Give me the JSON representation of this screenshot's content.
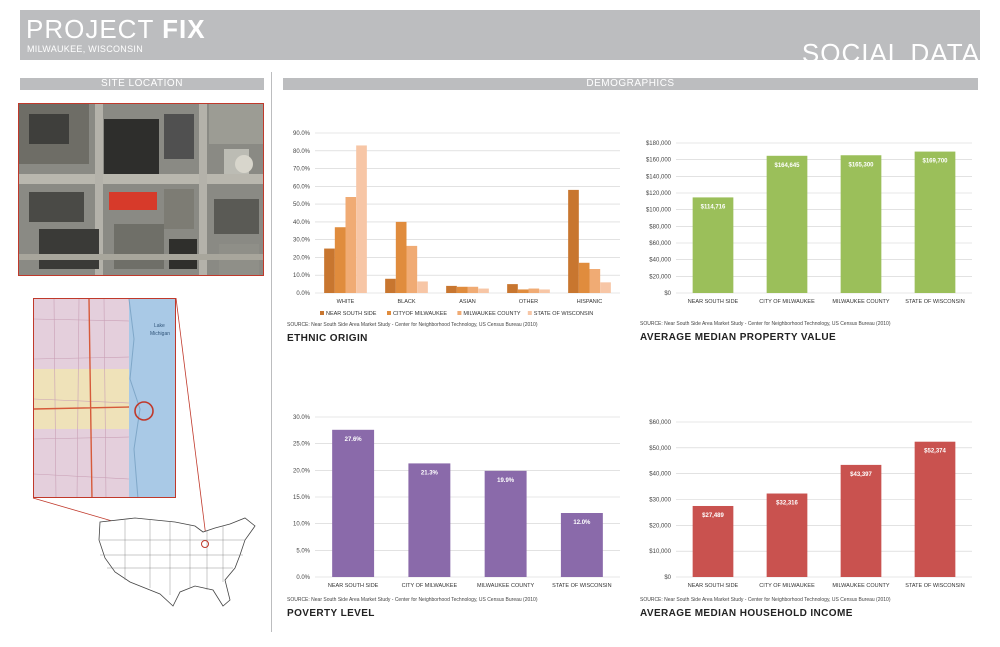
{
  "header": {
    "project_word": "PROJECT",
    "project_name": "FIX",
    "location": "MILWAUKEE, WISCONSIN",
    "section_title": "SOCIAL DATA"
  },
  "sections": {
    "site_location": "SITE LOCATION",
    "demographics": "DEMOGRAPHICS"
  },
  "map_labels": {
    "lake": "Lake",
    "lake2": "Michigan"
  },
  "colors": {
    "header_gray": "#bcbdbf",
    "accent_red": "#c0392b",
    "green": "#9bbf5a",
    "purple": "#8a6aaa",
    "red_bar": "#c9524f",
    "orange1": "#c8762f",
    "orange2": "#e08c3d",
    "orange3": "#f0ab74",
    "orange4": "#f7c6a6"
  },
  "chart_data": [
    {
      "id": "ethnic",
      "type": "bar",
      "title": "ETHNIC ORIGIN",
      "source": "SOURCE: Near South Side Area Market Study - Center for Neighborhood Technology, US Census Bureau (2010)",
      "categories": [
        "WHITE",
        "BLACK",
        "ASIAN",
        "OTHER",
        "HISPANIC"
      ],
      "series": [
        {
          "name": "NEAR SOUTH SIDE",
          "values": [
            25.0,
            8.0,
            4.0,
            5.0,
            58.0
          ]
        },
        {
          "name": "CITYOF MILWAUKEE",
          "values": [
            37.0,
            40.0,
            3.5,
            2.0,
            17.0
          ]
        },
        {
          "name": "MILWAUKEE COUNTY",
          "values": [
            54.0,
            26.5,
            3.5,
            2.5,
            13.5
          ]
        },
        {
          "name": "STATE OF WISCONSIN",
          "values": [
            83.0,
            6.5,
            2.5,
            2.0,
            6.0
          ]
        }
      ],
      "yticks": [
        "0.0%",
        "10.0%",
        "20.0%",
        "30.0%",
        "40.0%",
        "50.0%",
        "60.0%",
        "70.0%",
        "80.0%",
        "90.0%"
      ],
      "ylim": [
        0,
        90
      ]
    },
    {
      "id": "property",
      "type": "bar",
      "title": "AVERAGE MEDIAN PROPERTY VALUE",
      "source": "SOURCE: Near South Side Area Market Study - Center for Neighborhood Technology, US Census Bureau (2010)",
      "categories": [
        "NEAR SOUTH SIDE",
        "CITY OF MILWAUKEE",
        "MILWAUKEE COUNTY",
        "STATE OF WISCONSIN"
      ],
      "values": [
        114716,
        164645,
        165300,
        169700
      ],
      "labels": [
        "$114,716",
        "$164,645",
        "$165,300",
        "$169,700"
      ],
      "yticks": [
        "$0",
        "$20,000",
        "$40,000",
        "$60,000",
        "$80,000",
        "$100,000",
        "$120,000",
        "$140,000",
        "$160,000",
        "$180,000"
      ],
      "ylim": [
        0,
        180000
      ]
    },
    {
      "id": "poverty",
      "type": "bar",
      "title": "POVERTY LEVEL",
      "source": "SOURCE: Near South Side Area Market Study - Center for Neighborhood Technology, US Census Bureau (2010)",
      "categories": [
        "NEAR SOUTH SIDE",
        "CITY OF MILWAUKEE",
        "MILWAUKEE COUNTY",
        "STATE OF WISCONSIN"
      ],
      "values": [
        27.6,
        21.3,
        19.9,
        12.0
      ],
      "labels": [
        "27.6%",
        "21.3%",
        "19.9%",
        "12.0%"
      ],
      "yticks": [
        "0.0%",
        "5.0%",
        "10.0%",
        "15.0%",
        "20.0%",
        "25.0%",
        "30.0%"
      ],
      "ylim": [
        0,
        30
      ]
    },
    {
      "id": "income",
      "type": "bar",
      "title": "AVERAGE MEDIAN HOUSEHOLD INCOME",
      "source": "SOURCE: Near South Side Area Market Study - Center for Neighborhood Technology, US Census Bureau (2010)",
      "categories": [
        "NEAR SOUTH SIDE",
        "CITY OF MILWAUKEE",
        "MILWAUKEE COUNTY",
        "STATE OF WISCONSIN"
      ],
      "values": [
        27489,
        32316,
        43397,
        52374
      ],
      "labels": [
        "$27,489",
        "$32,316",
        "$43,397",
        "$52,374"
      ],
      "yticks": [
        "$0",
        "$10,000",
        "$20,000",
        "$30,000",
        "$40,000",
        "$50,000",
        "$60,000"
      ],
      "ylim": [
        0,
        60000
      ]
    }
  ]
}
